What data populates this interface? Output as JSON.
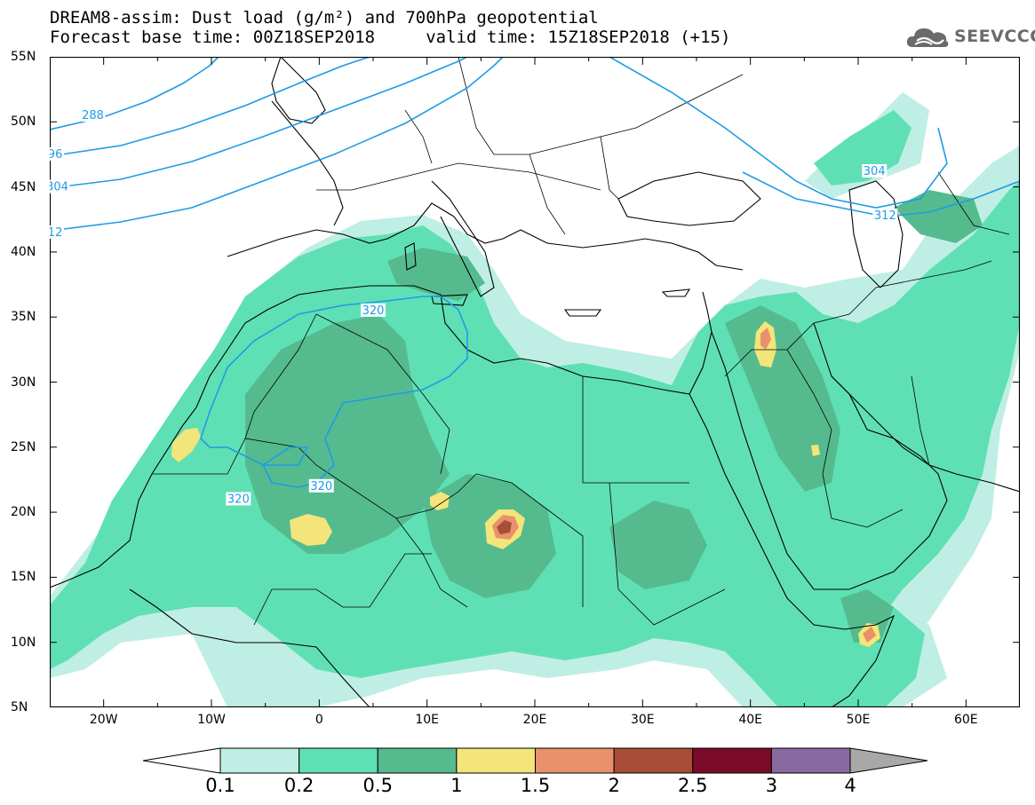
{
  "header": {
    "title_line_1": "DREAM8-assim: Dust load (g/m²) and 700hPa geopotential",
    "title_line_2": "Forecast base time: 00Z18SEP2018     valid time: 15Z18SEP2018 (+15)"
  },
  "logo": {
    "text": "SEEVCCC",
    "icon": "cloud-icon",
    "color": "#6b6b6b"
  },
  "map": {
    "lon_range": [
      -25,
      65
    ],
    "lat_range": [
      5,
      55
    ],
    "lat_ticks": [
      "55N",
      "50N",
      "45N",
      "40N",
      "35N",
      "30N",
      "25N",
      "20N",
      "15N",
      "10N",
      "5N"
    ],
    "lon_ticks": [
      "20W",
      "10W",
      "0",
      "10E",
      "20E",
      "30E",
      "40E",
      "50E",
      "60E"
    ],
    "contour_color": "#1e9be6",
    "contour_labels": [
      {
        "text": "288",
        "lon": -21,
        "lat": 50.5
      },
      {
        "text": "96",
        "lon": -24.5,
        "lat": 47.5
      },
      {
        "text": "304",
        "lon": -24.3,
        "lat": 45.0
      },
      {
        "text": "12",
        "lon": -24.5,
        "lat": 41.5
      },
      {
        "text": "320",
        "lon": 5,
        "lat": 35.5
      },
      {
        "text": "320",
        "lon": 0.2,
        "lat": 22.0
      },
      {
        "text": "320",
        "lon": -7.5,
        "lat": 21.0
      },
      {
        "text": "304",
        "lon": 51.5,
        "lat": 46.2
      },
      {
        "text": "312",
        "lon": 52.5,
        "lat": 42.8
      }
    ]
  },
  "colorbar": {
    "labels": [
      "0.1",
      "0.2",
      "0.5",
      "1",
      "1.5",
      "2",
      "2.5",
      "3",
      "4"
    ],
    "colors": [
      "#ffffff",
      "#bfeee4",
      "#5fe0b4",
      "#55bb8f",
      "#f4e57a",
      "#e8916a",
      "#a84e38",
      "#7b0a28",
      "#8a68a0",
      "#a8a8a8"
    ]
  }
}
